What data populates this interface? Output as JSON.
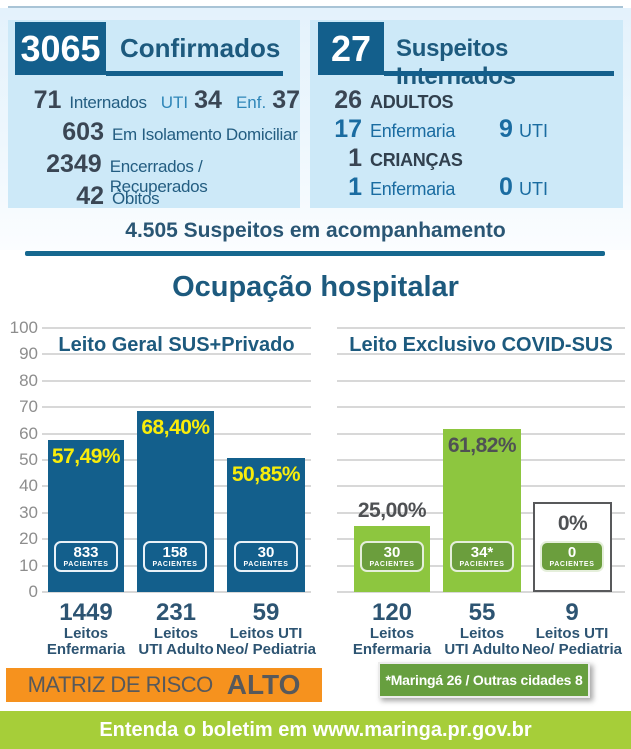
{
  "panels": {
    "confirmed": {
      "count": "3065",
      "title": "Confirmados",
      "internados": {
        "value": "71",
        "label": "Internados",
        "uti_label": "UTI",
        "uti_value": "34",
        "enf_label": "Enf.",
        "enf_value": "37"
      },
      "isolamento": {
        "value": "603",
        "label": "Em Isolamento Domiciliar"
      },
      "encerrados": {
        "value": "2349",
        "label": "Encerrados / Recuperados"
      },
      "obitos": {
        "value": "42",
        "label": "Óbitos"
      }
    },
    "suspects": {
      "count": "27",
      "title": "Suspeitos Internados",
      "adults": {
        "value": "26",
        "label": "ADULTOS"
      },
      "adults_detail": {
        "value": "17",
        "label": "Enfermaria",
        "uti_value": "9",
        "uti_label": "UTI"
      },
      "children": {
        "value": "1",
        "label": "CRIANÇAS"
      },
      "children_detail": {
        "value": "1",
        "label": "Enfermaria",
        "uti_value": "0",
        "uti_label": "UTI"
      }
    },
    "monitoring": "4.505 Suspeitos em acompanhamento"
  },
  "chart_data": {
    "type": "bar",
    "title": "Ocupação hospitalar",
    "ylim": [
      0,
      100
    ],
    "yticks": [
      0,
      10,
      20,
      30,
      40,
      50,
      60,
      70,
      80,
      90,
      100
    ],
    "grid": true,
    "legend_position": "none",
    "patients_unit": "PACIENTES",
    "groups": [
      {
        "label": "Leito Geral SUS+Privado",
        "bar_color": "#135f8c",
        "bars": [
          {
            "pct": 57.49,
            "pct_label": "57,49%",
            "patients": "833",
            "beds": "1449",
            "cat_line1": "Leitos",
            "cat_line2": "Enfermaria"
          },
          {
            "pct": 68.4,
            "pct_label": "68,40%",
            "patients": "158",
            "beds": "231",
            "cat_line1": "Leitos",
            "cat_line2": "UTI Adulto"
          },
          {
            "pct": 50.85,
            "pct_label": "50,85%",
            "patients": "30",
            "beds": "59",
            "cat_line1": "Leitos UTI",
            "cat_line2": "Neo/ Pediatria"
          }
        ]
      },
      {
        "label": "Leito Exclusivo COVID-SUS",
        "bar_color": "#8dc63f",
        "bars": [
          {
            "pct": 25.0,
            "pct_label": "25,00%",
            "patients": "30",
            "beds": "120",
            "cat_line1": "Leitos",
            "cat_line2": "Enfermaria"
          },
          {
            "pct": 61.82,
            "pct_label": "61,82%",
            "patients": "34*",
            "beds": "55",
            "cat_line1": "Leitos",
            "cat_line2": "UTI Adulto"
          },
          {
            "pct": 0,
            "pct_label": "0%",
            "patients": "0",
            "beds": "9",
            "cat_line1": "Leitos UTI",
            "cat_line2": "Neo/ Pediatria"
          }
        ]
      }
    ]
  },
  "risk": {
    "label": "MATRIZ DE RISCO",
    "value": "ALTO"
  },
  "note": "*Maringá 26 / Outras cidades 8",
  "footer": "Entenda o boletim em www.maringa.pr.gov.br",
  "colors": {
    "bar_blue": "#135f8c",
    "bar_green": "#8dc63f",
    "badge_green": "#6b9e3d",
    "label_yellow": "#f9ed0a",
    "heading_blue": "#1d5a7e",
    "panel_bg": "#cde9f8",
    "risk_orange": "#f6921e",
    "footer_green": "#a6ce39",
    "text_dark": "#3a4654",
    "text_gray": "#58595b",
    "axis_gray": "#8d8d8d"
  }
}
